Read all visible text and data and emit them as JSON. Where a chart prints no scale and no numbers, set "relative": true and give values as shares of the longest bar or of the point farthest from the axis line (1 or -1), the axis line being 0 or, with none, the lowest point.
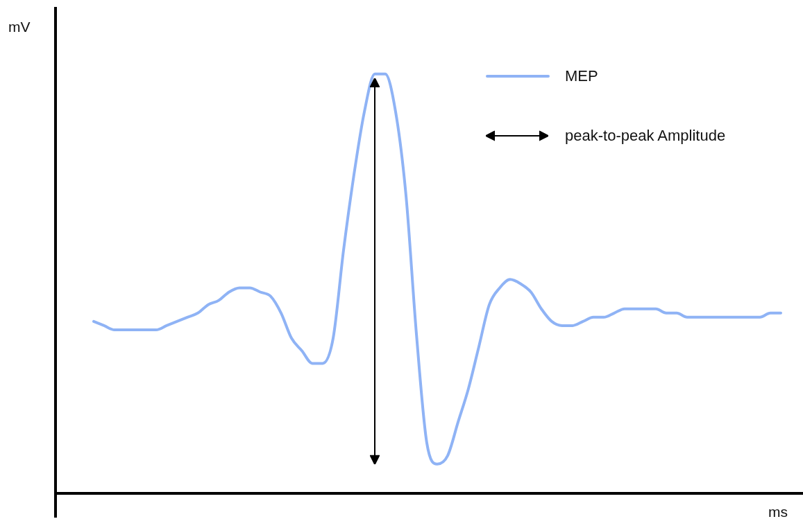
{
  "chart_data": {
    "type": "line",
    "xlabel": "ms",
    "ylabel": "mV",
    "relative": true,
    "legend": "top right",
    "marker": "none",
    "categories": [
      null,
      null,
      null,
      null,
      null,
      null,
      null,
      null,
      null,
      null,
      null,
      null,
      null,
      null,
      null,
      null,
      null,
      null,
      null,
      null,
      null,
      null,
      null,
      null,
      null,
      null,
      null,
      null,
      null,
      null,
      null,
      null,
      null,
      null,
      null,
      null,
      null,
      null,
      null,
      null,
      null,
      null,
      null,
      null,
      null,
      null,
      null,
      null,
      null,
      null,
      null,
      null,
      null,
      null,
      null,
      null,
      null,
      null,
      null,
      null,
      null,
      null,
      null,
      null,
      null,
      null,
      null
    ],
    "series": [
      {
        "name": "MEP",
        "color": "#8fb3f5",
        "values": [
          0.41,
          0.4,
          0.39,
          0.39,
          0.39,
          0.39,
          0.39,
          0.4,
          0.41,
          0.42,
          0.43,
          0.45,
          0.46,
          0.48,
          0.49,
          0.49,
          0.48,
          0.47,
          0.43,
          0.37,
          0.34,
          0.31,
          0.31,
          0.37,
          0.58,
          0.76,
          0.91,
          1.0,
          1.0,
          0.91,
          0.71,
          0.38,
          0.12,
          0.07,
          0.09,
          0.17,
          0.25,
          0.35,
          0.45,
          0.49,
          0.51,
          0.5,
          0.48,
          0.44,
          0.41,
          0.4,
          0.4,
          0.41,
          0.42,
          0.42,
          0.43,
          0.44,
          0.44,
          0.44,
          0.44,
          0.43,
          0.43,
          0.42,
          0.42,
          0.42,
          0.42,
          0.42,
          0.42,
          0.42,
          0.42,
          0.43,
          0.43
        ]
      }
    ],
    "annotations": [
      "peak-to-peak Amplitude"
    ]
  }
}
